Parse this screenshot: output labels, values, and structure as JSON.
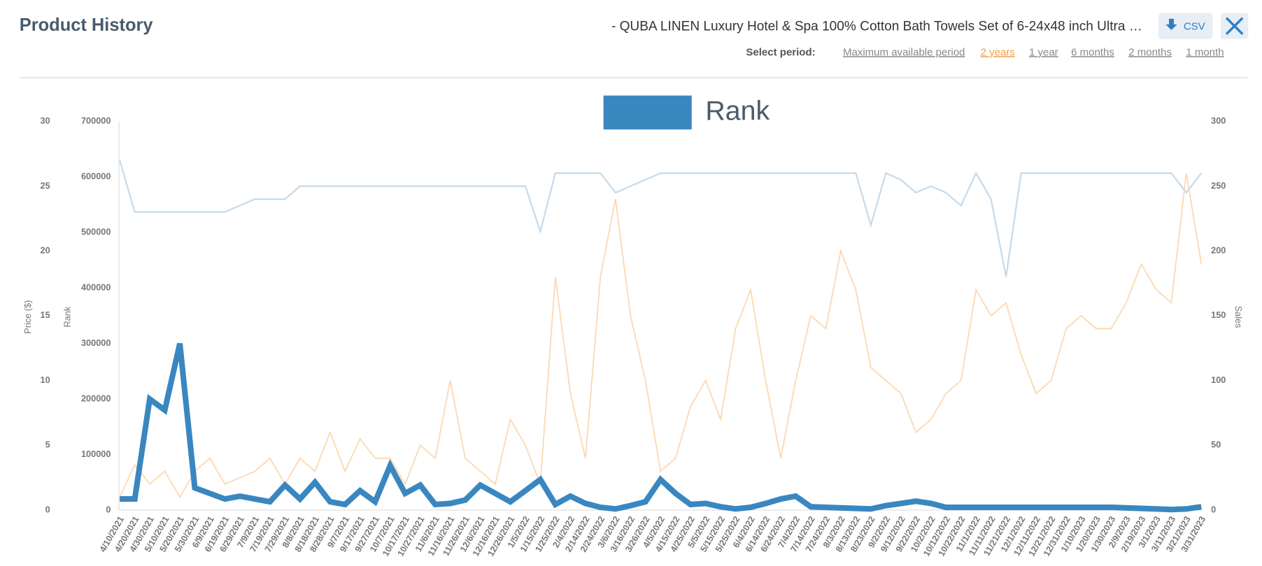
{
  "header": {
    "title": "Product History",
    "product": "- QUBA LINEN Luxury Hotel & Spa 100% Cotton Bath Towels Set of 6-24x48 inch Ultra …",
    "csv": "CSV",
    "period_label": "Select period:",
    "periods": [
      "Maximum available period",
      "2 years",
      "1 year",
      "6 months",
      "2 months",
      "1 month"
    ],
    "active_period": 1
  },
  "chart_data": {
    "type": "line",
    "categories": [
      "4/10/2021",
      "4/20/2021",
      "4/30/2021",
      "5/10/2021",
      "5/20/2021",
      "5/30/2021",
      "6/9/2021",
      "6/19/2021",
      "6/29/2021",
      "7/9/2021",
      "7/19/2021",
      "7/29/2021",
      "8/8/2021",
      "8/18/2021",
      "8/28/2021",
      "9/7/2021",
      "9/17/2021",
      "9/27/2021",
      "10/7/2021",
      "10/17/2021",
      "10/27/2021",
      "11/6/2021",
      "11/16/2021",
      "11/26/2021",
      "12/6/2021",
      "12/16/2021",
      "12/26/2021",
      "1/5/2022",
      "1/15/2022",
      "1/25/2022",
      "2/4/2022",
      "2/14/2022",
      "2/24/2022",
      "3/6/2022",
      "3/16/2022",
      "3/26/2022",
      "4/5/2022",
      "4/15/2022",
      "4/25/2022",
      "5/5/2022",
      "5/15/2022",
      "5/25/2022",
      "6/4/2022",
      "6/14/2022",
      "6/24/2022",
      "7/4/2022",
      "7/14/2022",
      "7/24/2022",
      "8/3/2022",
      "8/13/2022",
      "8/23/2022",
      "9/2/2022",
      "9/12/2022",
      "9/22/2022",
      "10/2/2022",
      "10/12/2022",
      "10/22/2022",
      "11/1/2022",
      "11/11/2022",
      "11/21/2022",
      "12/1/2022",
      "12/11/2022",
      "12/21/2022",
      "12/31/2022",
      "1/10/2023",
      "1/20/2023",
      "1/30/2023",
      "2/9/2023",
      "2/19/2023",
      "3/1/2023",
      "3/11/2023",
      "3/21/2023",
      "3/31/2023"
    ],
    "ylabel": "Price ($)",
    "ylim": [
      0,
      30
    ],
    "yticks": [
      0,
      5,
      10,
      15,
      20,
      25,
      30
    ],
    "y3label": "Rank",
    "y3lim": [
      0,
      700000
    ],
    "y3ticks": [
      0,
      100000,
      200000,
      300000,
      400000,
      500000,
      600000,
      700000
    ],
    "y2label": "Sales",
    "y2lim": [
      0,
      300
    ],
    "y2ticks": [
      0,
      50,
      100,
      150,
      200,
      250,
      300
    ],
    "grid": false,
    "series": [
      {
        "name": "Rank",
        "color": "#3a87c0",
        "axis": "y3",
        "values": [
          20000,
          20000,
          200000,
          180000,
          300000,
          40000,
          30000,
          20000,
          25000,
          20000,
          15000,
          45000,
          20000,
          50000,
          15000,
          10000,
          35000,
          15000,
          80000,
          30000,
          45000,
          10000,
          12000,
          18000,
          45000,
          30000,
          15000,
          35000,
          55000,
          10000,
          25000,
          12000,
          5000,
          2000,
          8000,
          15000,
          55000,
          30000,
          10000,
          12000,
          6000,
          2000,
          5000,
          12000,
          20000,
          25000,
          6000,
          5000,
          4000,
          3000,
          2000,
          8000,
          12000,
          16000,
          12000,
          5000,
          5000,
          5000,
          5000,
          5000,
          5000,
          5000,
          5000,
          5000,
          5000,
          5000,
          5000,
          4000,
          3000,
          2000,
          1000,
          2000,
          6000
        ]
      },
      {
        "color": "#c9dbea",
        "axis": "y",
        "values": [
          27,
          23,
          23,
          23,
          23,
          23,
          23,
          23,
          23.5,
          24,
          24,
          24,
          25,
          25,
          25,
          25,
          25,
          25,
          25,
          25,
          25,
          25,
          25,
          25,
          25,
          25,
          25,
          25,
          21.5,
          26,
          26,
          26,
          26,
          24.5,
          25,
          25.5,
          26,
          26,
          26,
          26,
          26,
          26,
          26,
          26,
          26,
          26,
          26,
          26,
          26,
          26,
          22,
          26,
          25.5,
          24.5,
          25,
          24.5,
          23.5,
          26,
          24,
          18,
          26,
          26,
          26,
          26,
          26,
          26,
          26,
          26,
          26,
          26,
          26,
          24.5,
          26
        ]
      },
      {
        "color": "#fcd9b3",
        "axis": "y2",
        "values": [
          10,
          35,
          20,
          30,
          10,
          30,
          40,
          20,
          25,
          30,
          40,
          20,
          40,
          30,
          60,
          30,
          55,
          40,
          40,
          20,
          50,
          40,
          100,
          40,
          30,
          20,
          70,
          50,
          20,
          180,
          90,
          40,
          180,
          240,
          150,
          100,
          30,
          40,
          80,
          100,
          70,
          140,
          170,
          100,
          40,
          100,
          150,
          140,
          200,
          170,
          110,
          100,
          90,
          60,
          70,
          90,
          100,
          170,
          150,
          160,
          120,
          90,
          100,
          140,
          150,
          140,
          140,
          160,
          190,
          170,
          160,
          260,
          190
        ]
      }
    ]
  }
}
